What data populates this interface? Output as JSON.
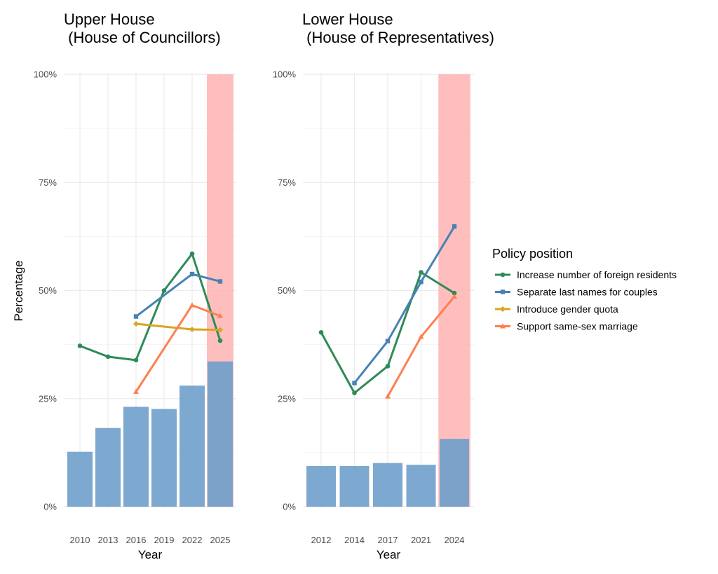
{
  "chart_data": [
    {
      "type": "bar",
      "title_line1": "Upper House",
      "title_line2": " (House of Councillors)",
      "xlabel": "Year",
      "ylabel": "Percentage",
      "ylim": [
        0,
        100
      ],
      "y_ticks": [
        "0%",
        "25%",
        "50%",
        "75%",
        "100%"
      ],
      "categories": [
        "2010",
        "2013",
        "2016",
        "2019",
        "2022",
        "2025"
      ],
      "highlight_category": "2025",
      "bars": [
        12.7,
        18.2,
        23.1,
        22.6,
        28.0,
        33.6
      ],
      "series": [
        {
          "name": "Increase number of foreign residents",
          "values": [
            37.2,
            34.7,
            33.9,
            50.0,
            58.5,
            38.4
          ]
        },
        {
          "name": "Separate last names for couples",
          "values": [
            null,
            null,
            44.0,
            null,
            53.8,
            52.1
          ]
        },
        {
          "name": "Introduce gender quota",
          "values": [
            null,
            null,
            42.3,
            null,
            41.0,
            40.9
          ]
        },
        {
          "name": "Support same-sex marriage",
          "values": [
            null,
            null,
            26.6,
            null,
            46.6,
            44.1
          ]
        }
      ]
    },
    {
      "type": "bar",
      "title_line1": "Lower House",
      "title_line2": " (House of Representatives)",
      "xlabel": "Year",
      "ylabel": "",
      "ylim": [
        0,
        100
      ],
      "y_ticks": [
        "0%",
        "25%",
        "50%",
        "75%",
        "100%"
      ],
      "categories": [
        "2012",
        "2014",
        "2017",
        "2021",
        "2024"
      ],
      "highlight_category": "2024",
      "bars": [
        9.4,
        9.4,
        10.1,
        9.7,
        15.7
      ],
      "series": [
        {
          "name": "Increase number of foreign residents",
          "values": [
            40.3,
            26.3,
            32.5,
            54.2,
            49.4
          ]
        },
        {
          "name": "Separate last names for couples",
          "values": [
            null,
            28.6,
            38.3,
            52.0,
            64.8
          ]
        },
        {
          "name": "Introduce gender quota",
          "values": [
            null,
            null,
            null,
            null,
            null
          ]
        },
        {
          "name": "Support same-sex marriage",
          "values": [
            null,
            null,
            25.5,
            39.3,
            48.6
          ]
        }
      ]
    }
  ],
  "legend": {
    "title": "Policy position",
    "items": [
      {
        "label": "Increase number of foreign residents",
        "color": "#2e8b57",
        "shape": "circle"
      },
      {
        "label": "Separate last names for couples",
        "color": "#4682b4",
        "shape": "square"
      },
      {
        "label": "Introduce gender quota",
        "color": "#daa520",
        "shape": "diamond"
      },
      {
        "label": "Support same-sex marriage",
        "color": "#ff7f50",
        "shape": "triangle"
      }
    ]
  },
  "colors": {
    "bar": "#6f9fcb",
    "highlight_band": "#ffb3b3",
    "grid": "#ebebeb"
  }
}
